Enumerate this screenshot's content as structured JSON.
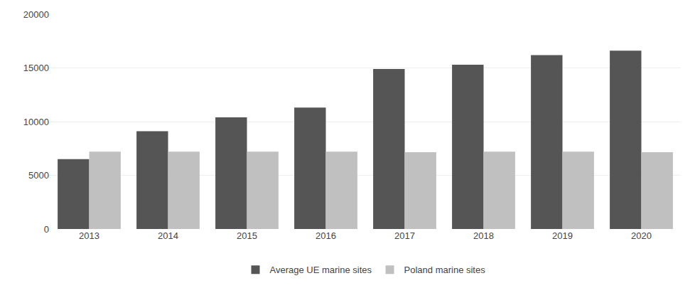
{
  "chart_data": {
    "type": "bar",
    "categories": [
      "2013",
      "2014",
      "2015",
      "2016",
      "2017",
      "2018",
      "2019",
      "2020"
    ],
    "series": [
      {
        "name": "Average UE marine sites",
        "color": "#555555",
        "values": [
          6500,
          9100,
          10400,
          11300,
          14900,
          15300,
          16200,
          16600
        ]
      },
      {
        "name": "Poland marine sites",
        "color": "#c0c0c0",
        "values": [
          7200,
          7200,
          7200,
          7200,
          7150,
          7200,
          7200,
          7150
        ]
      }
    ],
    "ylim": [
      0,
      20000
    ],
    "yticks": [
      0,
      5000,
      10000,
      15000,
      20000
    ],
    "grid": true,
    "legend": "bottom"
  }
}
